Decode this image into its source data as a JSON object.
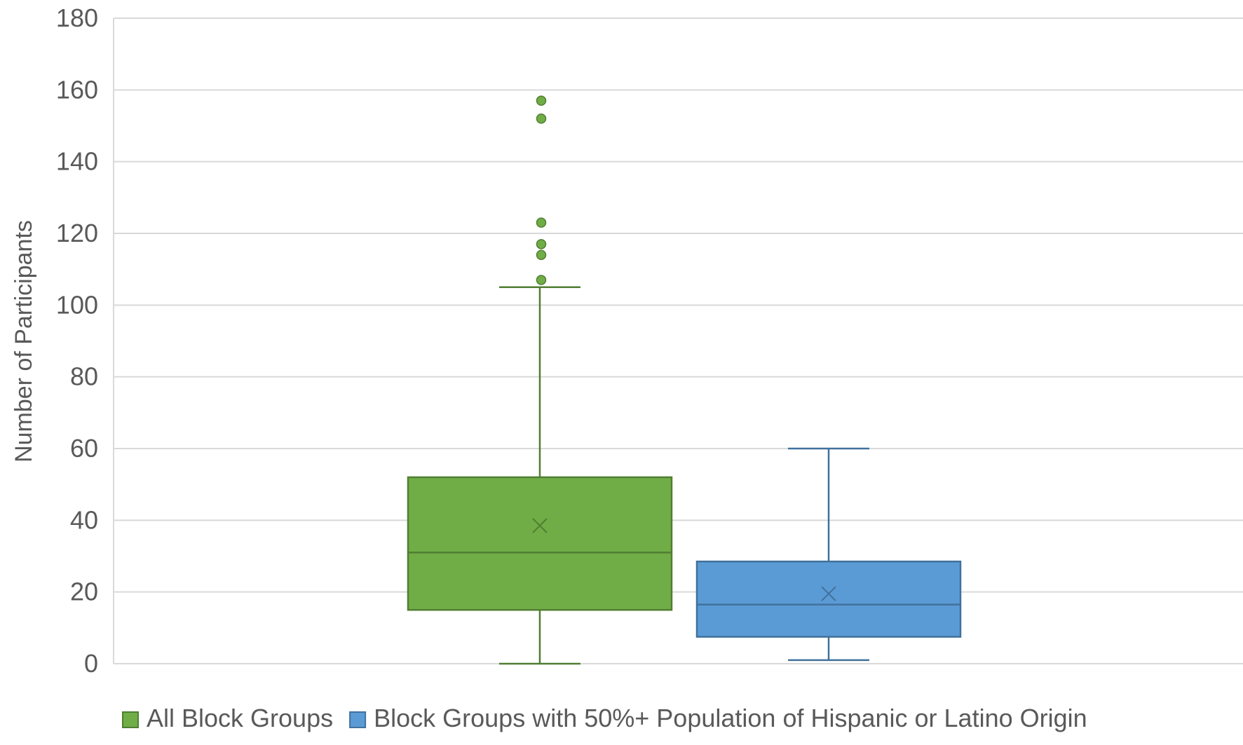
{
  "chart_data": {
    "type": "box",
    "title": "",
    "xlabel": "",
    "ylabel": "Number of Participants",
    "ylim": [
      0,
      180
    ],
    "yticks": [
      0,
      20,
      40,
      60,
      80,
      100,
      120,
      140,
      160,
      180
    ],
    "ytick_labels": [
      "0",
      "20",
      "40",
      "60",
      "80",
      "100",
      "120",
      "140",
      "160",
      "180"
    ],
    "grid": "horizontal",
    "legend_position": "bottom",
    "series": [
      {
        "name": "All Block Groups",
        "color": "#70ad47",
        "stroke": "#507e32",
        "min": 0,
        "q1": 15,
        "median": 31,
        "q3": 52,
        "max": 105,
        "mean": 38.5,
        "outliers": [
          107,
          114,
          117,
          123,
          152,
          157
        ]
      },
      {
        "name": "Block Groups with 50%+ Population of Hispanic or Latino Origin",
        "color": "#5b9bd5",
        "stroke": "#41719c",
        "min": 1,
        "q1": 7.5,
        "median": 16.5,
        "q3": 28.5,
        "max": 60,
        "mean": 19.5,
        "outliers": []
      }
    ]
  }
}
